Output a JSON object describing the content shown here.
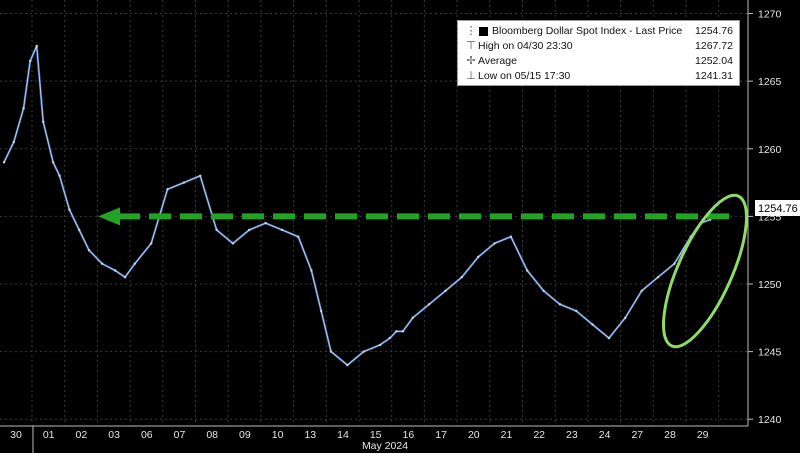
{
  "chart_data": {
    "type": "line",
    "legend": {
      "title": "Bloomberg Dollar Spot Index - Last Price",
      "last_value": "1254.76",
      "high_label": "High on 04/30 23:30",
      "high_value": "1267.72",
      "avg_label": "Average",
      "avg_value": "1252.04",
      "low_label": "Low on 05/15 17:30",
      "low_value": "1241.31"
    },
    "x_tick_labels": [
      "30",
      "01",
      "02",
      "03",
      "06",
      "07",
      "08",
      "09",
      "10",
      "13",
      "14",
      "15",
      "16",
      "17",
      "20",
      "21",
      "22",
      "23",
      "24",
      "27",
      "28",
      "29"
    ],
    "x_month_label": "May 2024",
    "y_ticks": [
      1240,
      1245,
      1250,
      1255,
      1260,
      1265,
      1270
    ],
    "ylim": [
      1239.5,
      1271
    ],
    "last_price_label": "1254.76",
    "reference_level": 1255.0,
    "series": [
      {
        "x": [
          0,
          0.3,
          0.6,
          0.8,
          1.0,
          1.2,
          1.5,
          1.7,
          2.0,
          2.3,
          2.6,
          3.0,
          3.4,
          3.7,
          4.0,
          4.5,
          5.0,
          5.5,
          6.0,
          6.5,
          7.0,
          7.5,
          8.0,
          8.5,
          9.0,
          9.4,
          9.7,
          10.0,
          10.5,
          11.0,
          11.5,
          11.8,
          12.0,
          12.2,
          12.5,
          13.0,
          13.5,
          14.0,
          14.5,
          15.0,
          15.5,
          16.0,
          16.5,
          17.0,
          17.5,
          18.0,
          18.5,
          19.0,
          19.5,
          20.0,
          20.5,
          21.0,
          21.3,
          21.6
        ],
        "y": [
          1259,
          1260.5,
          1263,
          1266.5,
          1267.6,
          1262,
          1259,
          1258,
          1255.5,
          1254,
          1252.5,
          1251.5,
          1251,
          1250.5,
          1251.5,
          1253,
          1257,
          1257.5,
          1258,
          1254,
          1253,
          1254,
          1254.5,
          1254,
          1253.5,
          1251,
          1248,
          1245,
          1244,
          1245,
          1245.5,
          1246,
          1246.5,
          1246.5,
          1247.5,
          1248.5,
          1249.5,
          1250.5,
          1252,
          1253,
          1253.5,
          1251,
          1249.5,
          1248.5,
          1248,
          1247,
          1246,
          1247.5,
          1249.5,
          1250.5,
          1251.5,
          1253.5,
          1254.5,
          1254.76
        ]
      }
    ]
  }
}
